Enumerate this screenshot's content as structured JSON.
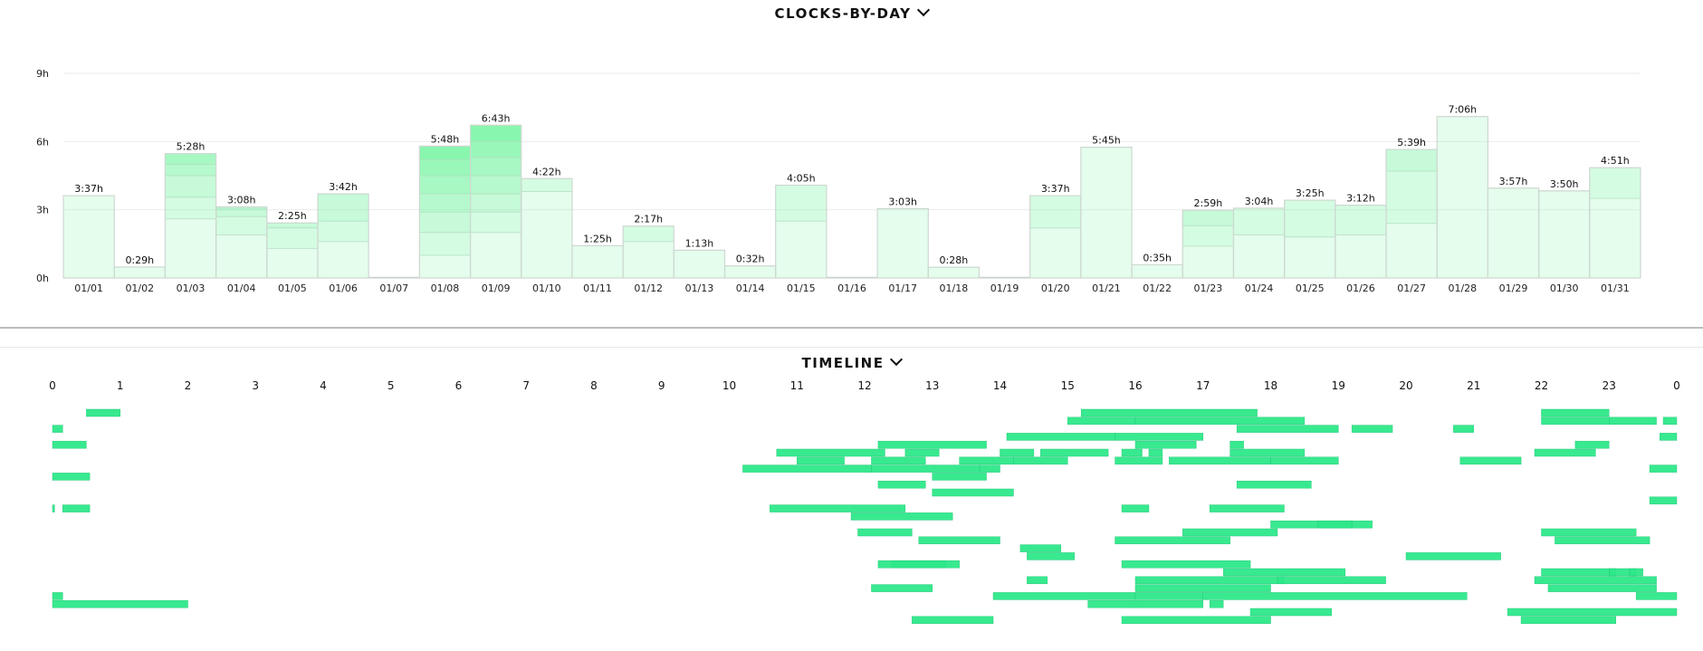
{
  "sections": {
    "clocks_title": "CLOCKS-BY-DAY",
    "timeline_title": "TIMELINE"
  },
  "colors": {
    "bar_fill": "#e3fcec",
    "bar_stroke": "#cfd8d2",
    "segment_base": [
      130,
      245,
      170
    ],
    "timeline_bar": "#2ee88a",
    "gridline": "#ebebeb"
  },
  "chart_data": [
    {
      "type": "bar",
      "title": "CLOCKS-BY-DAY",
      "ylim": [
        0,
        9
      ],
      "y_ticks": [
        0,
        3,
        6,
        9
      ],
      "y_tick_labels": [
        "0h",
        "3h",
        "6h",
        "9h"
      ],
      "grid": true,
      "categories": [
        "01/01",
        "01/02",
        "01/03",
        "01/04",
        "01/05",
        "01/06",
        "01/07",
        "01/08",
        "01/09",
        "01/10",
        "01/11",
        "01/12",
        "01/13",
        "01/14",
        "01/15",
        "01/16",
        "01/17",
        "01/18",
        "01/19",
        "01/20",
        "01/21",
        "01/22",
        "01/23",
        "01/24",
        "01/25",
        "01/26",
        "01/27",
        "01/28",
        "01/29",
        "01/30",
        "01/31"
      ],
      "values": [
        3.62,
        0.48,
        5.47,
        3.13,
        2.42,
        3.7,
        0,
        5.8,
        6.72,
        4.37,
        1.42,
        2.28,
        1.22,
        0.53,
        4.08,
        0,
        3.05,
        0.47,
        0,
        3.62,
        5.75,
        0.58,
        2.98,
        3.07,
        3.42,
        3.2,
        5.65,
        7.1,
        3.95,
        3.83,
        4.85
      ],
      "data_labels": [
        "3:37h",
        "0:29h",
        "5:28h",
        "3:08h",
        "2:25h",
        "3:42h",
        "",
        "5:48h",
        "6:43h",
        "4:22h",
        "1:25h",
        "2:17h",
        "1:13h",
        "0:32h",
        "4:05h",
        "",
        "3:03h",
        "0:28h",
        "",
        "3:37h",
        "5:45h",
        "0:35h",
        "2:59h",
        "3:04h",
        "3:25h",
        "3:12h",
        "5:39h",
        "7:06h",
        "3:57h",
        "3:50h",
        "4:51h"
      ],
      "segments": [
        [
          3.62
        ],
        [
          0.48
        ],
        [
          2.6,
          0.95,
          0.95,
          0.5,
          0.47
        ],
        [
          1.9,
          0.8,
          0.33,
          0.1
        ],
        [
          1.3,
          0.9,
          0.22
        ],
        [
          1.6,
          0.9,
          1.2
        ],
        [],
        [
          1.0,
          1.0,
          0.9,
          0.8,
          0.8,
          0.7,
          0.6
        ],
        [
          2.0,
          0.9,
          0.8,
          0.8,
          0.8,
          0.7,
          0.72
        ],
        [
          3.8,
          0.57
        ],
        [
          1.42
        ],
        [
          1.6,
          0.68
        ],
        [
          1.22
        ],
        [
          0.53
        ],
        [
          2.5,
          1.58
        ],
        [],
        [
          3.05
        ],
        [
          0.47
        ],
        [],
        [
          2.2,
          1.42
        ],
        [
          5.75
        ],
        [
          0.58
        ],
        [
          1.4,
          0.9,
          0.68
        ],
        [
          1.9,
          1.17
        ],
        [
          1.8,
          1.62
        ],
        [
          1.9,
          1.3
        ],
        [
          2.4,
          2.3,
          0.95
        ],
        [
          7.1
        ],
        [
          3.95
        ],
        [
          3.83
        ],
        [
          3.5,
          1.35
        ]
      ]
    },
    {
      "type": "timeline",
      "title": "TIMELINE",
      "x_ticks": [
        "0",
        "1",
        "2",
        "3",
        "4",
        "5",
        "6",
        "7",
        "8",
        "9",
        "10",
        "11",
        "12",
        "13",
        "14",
        "15",
        "16",
        "17",
        "18",
        "19",
        "20",
        "21",
        "22",
        "23",
        "0"
      ],
      "xlim": [
        0,
        24
      ],
      "rows": [
        [
          [
            0.5,
            1.0
          ],
          [
            15.2,
            17.8
          ],
          [
            22.0,
            23.0
          ]
        ],
        [
          [
            15.0,
            16.0
          ],
          [
            16.0,
            18.5
          ],
          [
            22.0,
            23.0
          ],
          [
            23.0,
            23.7
          ],
          [
            23.8,
            24
          ]
        ],
        [
          [
            0,
            0.15
          ],
          [
            17.5,
            19.0
          ],
          [
            19.2,
            19.8
          ],
          [
            20.7,
            21.0
          ]
        ],
        [
          [
            14.1,
            15.7
          ],
          [
            15.7,
            17.0
          ],
          [
            23.75,
            24
          ]
        ],
        [
          [
            0,
            0.5
          ],
          [
            12.2,
            13.8
          ],
          [
            16.0,
            16.9
          ],
          [
            17.4,
            17.6
          ],
          [
            22.5,
            23.0
          ]
        ],
        [
          [
            10.7,
            12.3
          ],
          [
            12.6,
            13.1
          ],
          [
            14.0,
            14.5
          ],
          [
            14.6,
            15.6
          ],
          [
            15.8,
            16.1
          ],
          [
            16.2,
            16.4
          ],
          [
            17.4,
            18.5
          ],
          [
            21.9,
            22.8
          ]
        ],
        [
          [
            11.0,
            11.7
          ],
          [
            12.1,
            12.9
          ],
          [
            13.4,
            14.2
          ],
          [
            14.2,
            15.0
          ],
          [
            15.7,
            16.4
          ],
          [
            16.5,
            18.0
          ],
          [
            18.0,
            19.0
          ],
          [
            20.8,
            21.7
          ]
        ],
        [
          [
            10.2,
            12.1
          ],
          [
            12.1,
            13.7
          ],
          [
            13.7,
            14.0
          ],
          [
            23.6,
            24
          ]
        ],
        [
          [
            0,
            0.55
          ],
          [
            13.0,
            13.8
          ]
        ],
        [
          [
            12.2,
            12.9
          ],
          [
            17.5,
            18.6
          ]
        ],
        [
          [
            13.0,
            14.2
          ]
        ],
        [
          [
            23.6,
            24
          ]
        ],
        [
          [
            0,
            0.03
          ],
          [
            0.15,
            0.55
          ],
          [
            10.6,
            12.6
          ],
          [
            15.8,
            16.2
          ],
          [
            17.1,
            18.2
          ]
        ],
        [
          [
            11.8,
            13.3
          ]
        ],
        [
          [
            18.0,
            19.5
          ],
          [
            18.7,
            19.2
          ]
        ],
        [
          [
            11.9,
            12.7
          ],
          [
            16.7,
            18.1
          ],
          [
            22.0,
            23.4
          ]
        ],
        [
          [
            12.8,
            14.0
          ],
          [
            15.7,
            17.4
          ],
          [
            22.2,
            23.6
          ]
        ],
        [
          [
            14.3,
            14.9
          ]
        ],
        [
          [
            14.4,
            15.1
          ],
          [
            20.0,
            21.4
          ]
        ],
        [
          [
            12.4,
            13.2
          ],
          [
            12.2,
            13.4
          ],
          [
            15.8,
            17.7
          ]
        ],
        [
          [
            17.3,
            19.1
          ],
          [
            22.0,
            23.1
          ],
          [
            23.0,
            23.4
          ],
          [
            23.3,
            23.5
          ]
        ],
        [
          [
            14.4,
            14.7
          ],
          [
            16.0,
            18.2
          ],
          [
            18.1,
            19.7
          ],
          [
            21.9,
            23.7
          ]
        ],
        [
          [
            12.1,
            13.0
          ],
          [
            16.0,
            18.0
          ],
          [
            22.1,
            23.7
          ]
        ],
        [
          [
            0,
            0.15
          ],
          [
            13.9,
            16.0
          ],
          [
            16.0,
            17.0
          ],
          [
            17.0,
            20.9
          ],
          [
            23.4,
            24
          ]
        ],
        [
          [
            0,
            2.0
          ],
          [
            15.3,
            17.0
          ],
          [
            17.1,
            17.3
          ]
        ],
        [
          [
            17.7,
            18.9
          ],
          [
            21.5,
            24
          ]
        ],
        [
          [
            12.7,
            13.9
          ],
          [
            15.8,
            18.0
          ],
          [
            21.7,
            23.1
          ]
        ]
      ]
    }
  ]
}
